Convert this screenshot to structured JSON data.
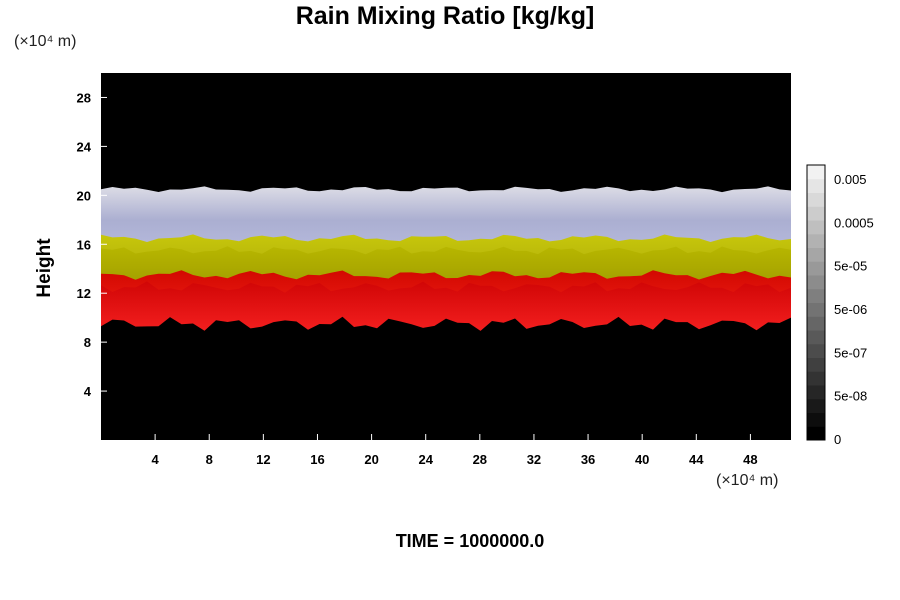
{
  "chart_data": {
    "type": "heatmap",
    "title": "Rain Mixing Ratio [kg/kg]",
    "xlabel": "",
    "ylabel": "Height",
    "x_unit": "(×10⁴ m)",
    "y_unit": "(×10⁴ m)",
    "xlim": [
      0,
      51
    ],
    "ylim": [
      0,
      30
    ],
    "x_ticks": [
      "4",
      "8",
      "12",
      "16",
      "20",
      "24",
      "28",
      "32",
      "36",
      "40",
      "44",
      "48"
    ],
    "y_ticks": [
      "4",
      "8",
      "12",
      "16",
      "20",
      "24",
      "28"
    ],
    "colorbar_labels": [
      "0.005",
      "0.0005",
      "5e-05",
      "5e-06",
      "5e-07",
      "5e-08",
      "0"
    ],
    "background_color": "#000000",
    "layers": [
      {
        "band": "white-blue",
        "color": "#c9cbe8",
        "bottom": 15.5,
        "top": 20.5
      },
      {
        "band": "yellow",
        "color": "#b8b800",
        "bottom": 12.5,
        "top": 16.5
      },
      {
        "band": "red",
        "color": "#e00000",
        "bottom": 9.5,
        "top": 13.5
      }
    ],
    "grid": false
  },
  "footer": "TIME = 1000000.0"
}
